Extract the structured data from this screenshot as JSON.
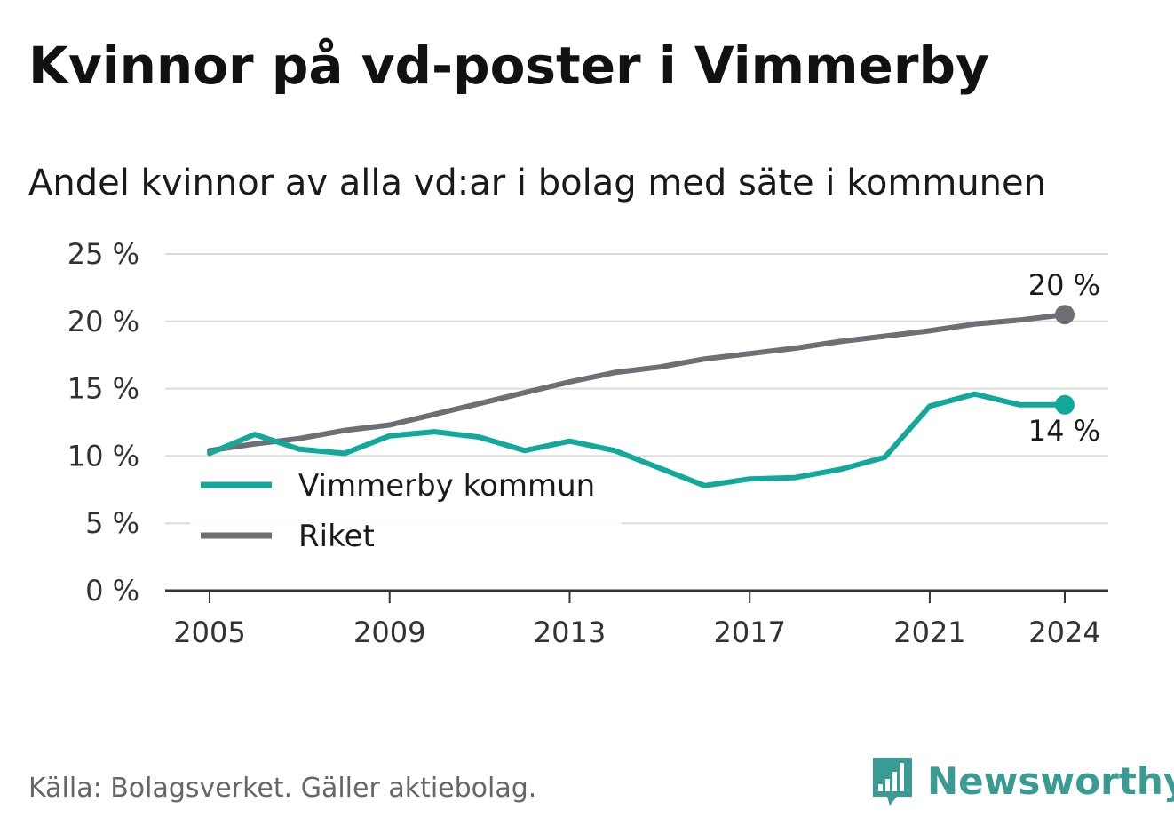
{
  "title": "Kvinnor på vd-poster i Vimmerby",
  "subtitle": "Andel kvinnor av alla vd:ar i bolag med säte i kommunen",
  "source": "Källa: Bolagsverket. Gäller aktiebolag.",
  "brand": {
    "name": "Newsworthy",
    "logo_icon": "bar-chart-speech-bubble-icon",
    "color": "#3a9a94"
  },
  "chart_data": {
    "type": "line",
    "x": [
      2005,
      2006,
      2007,
      2008,
      2009,
      2010,
      2011,
      2012,
      2013,
      2014,
      2015,
      2016,
      2017,
      2018,
      2019,
      2020,
      2021,
      2022,
      2023,
      2024
    ],
    "x_ticks": [
      2005,
      2009,
      2013,
      2017,
      2021,
      2024
    ],
    "x_tick_labels": [
      "2005",
      "2009",
      "2013",
      "2017",
      "2021",
      "2024"
    ],
    "ylim": [
      0,
      25
    ],
    "y_ticks": [
      0,
      5,
      10,
      15,
      20,
      25
    ],
    "y_tick_labels": [
      "0 %",
      "5 %",
      "10 %",
      "15 %",
      "20 %",
      "25 %"
    ],
    "grid": true,
    "legend_position": "bottom-left",
    "series": [
      {
        "name": "Vimmerby kommun",
        "color": "#12a89a",
        "values": [
          10.2,
          11.6,
          10.5,
          10.2,
          11.5,
          11.8,
          11.4,
          10.4,
          11.1,
          10.4,
          9.1,
          7.8,
          8.3,
          8.4,
          9.0,
          9.9,
          13.7,
          14.6,
          13.8,
          13.8
        ],
        "end_label": "14 %",
        "end_label_position": "below"
      },
      {
        "name": "Riket",
        "color": "#6f6e75",
        "values": [
          10.4,
          10.9,
          11.3,
          11.9,
          12.3,
          13.1,
          13.9,
          14.7,
          15.5,
          16.2,
          16.6,
          17.2,
          17.6,
          18.0,
          18.5,
          18.9,
          19.3,
          19.8,
          20.1,
          20.5
        ],
        "end_label": "20 %",
        "end_label_position": "above"
      }
    ]
  }
}
